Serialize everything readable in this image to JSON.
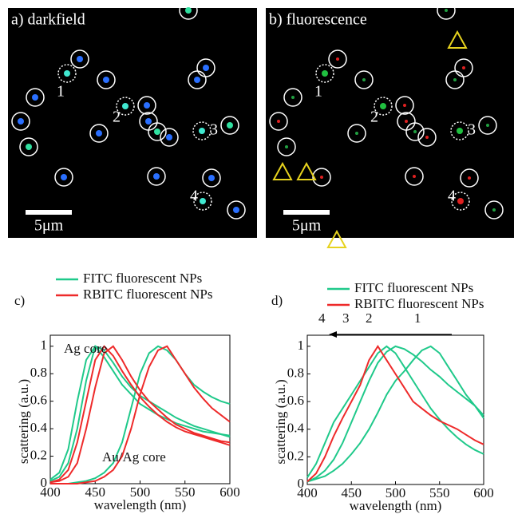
{
  "images": [
    {
      "label": "a) darkfield",
      "numbers": [
        "1",
        "2",
        "3",
        "4"
      ],
      "scale": "5μm"
    },
    {
      "label": "b) fluorescence",
      "numbers": [
        "1",
        "2",
        "3",
        "4"
      ],
      "scale": "5μm"
    }
  ],
  "chart_data": [
    {
      "type": "line",
      "panel": "c)",
      "x_label": "wavelength (nm)",
      "y_label": "scattering (a.u.)",
      "x": [
        400,
        410,
        420,
        430,
        440,
        450,
        460,
        470,
        480,
        490,
        500,
        510,
        520,
        530,
        540,
        550,
        560,
        570,
        580,
        590,
        600
      ],
      "xlim": [
        400,
        600
      ],
      "xticks": [
        400,
        450,
        500,
        550,
        600
      ],
      "ylim": [
        0,
        1.08
      ],
      "yticks": [
        0,
        0.2,
        0.4,
        0.6,
        0.8,
        1
      ],
      "annotations": [
        "Ag core",
        "Au/Ag core"
      ],
      "series": [
        {
          "name": "FITC fluorescent NPs",
          "color": "#1fc98a",
          "curves": [
            {
              "values": [
                0.02,
                0.05,
                0.15,
                0.4,
                0.75,
                1.0,
                0.97,
                0.88,
                0.78,
                0.7,
                0.64,
                0.6,
                0.56,
                0.52,
                0.48,
                0.45,
                0.42,
                0.4,
                0.38,
                0.36,
                0.34
              ]
            },
            {
              "values": [
                0.03,
                0.08,
                0.25,
                0.6,
                0.9,
                1.0,
                0.92,
                0.82,
                0.72,
                0.65,
                0.58,
                0.54,
                0.5,
                0.47,
                0.44,
                0.42,
                0.4,
                0.38,
                0.37,
                0.36,
                0.35
              ]
            },
            {
              "values": [
                0,
                0,
                0,
                0.01,
                0.02,
                0.04,
                0.08,
                0.15,
                0.3,
                0.55,
                0.8,
                0.95,
                1.0,
                0.97,
                0.9,
                0.8,
                0.72,
                0.67,
                0.63,
                0.6,
                0.58
              ]
            }
          ]
        },
        {
          "name": "RBITC fluorescent NPs",
          "color": "#ee2a2a",
          "curves": [
            {
              "values": [
                0.01,
                0.02,
                0.05,
                0.15,
                0.4,
                0.7,
                0.95,
                1.0,
                0.9,
                0.78,
                0.68,
                0.6,
                0.54,
                0.48,
                0.43,
                0.4,
                0.37,
                0.35,
                0.33,
                0.31,
                0.3
              ]
            },
            {
              "values": [
                0.01,
                0.03,
                0.1,
                0.3,
                0.6,
                0.9,
                1.0,
                0.93,
                0.82,
                0.72,
                0.63,
                0.56,
                0.5,
                0.45,
                0.41,
                0.38,
                0.36,
                0.34,
                0.32,
                0.3,
                0.28
              ]
            },
            {
              "values": [
                0,
                0,
                0,
                0,
                0.01,
                0.02,
                0.05,
                0.1,
                0.2,
                0.4,
                0.65,
                0.85,
                0.97,
                1.0,
                0.9,
                0.8,
                0.7,
                0.62,
                0.55,
                0.5,
                0.45
              ]
            }
          ]
        }
      ]
    },
    {
      "type": "line",
      "panel": "d)",
      "x_label": "wavelength (nm)",
      "y_label": "scattering (a.u.)",
      "x": [
        400,
        410,
        420,
        430,
        440,
        450,
        460,
        470,
        480,
        490,
        500,
        510,
        520,
        530,
        540,
        550,
        560,
        570,
        580,
        590,
        600
      ],
      "xlim": [
        400,
        600
      ],
      "xticks": [
        400,
        450,
        500,
        550,
        600
      ],
      "ylim": [
        0,
        1.08
      ],
      "yticks": [
        0,
        0.2,
        0.4,
        0.6,
        0.8,
        1
      ],
      "annotations": [
        "4",
        "3",
        "2",
        "1"
      ],
      "series": [
        {
          "name": "FITC fluorescent NPs",
          "color": "#1fc98a",
          "curves": [
            {
              "values": [
                0.02,
                0.04,
                0.06,
                0.1,
                0.15,
                0.22,
                0.3,
                0.4,
                0.52,
                0.65,
                0.75,
                0.82,
                0.9,
                0.97,
                1.0,
                0.95,
                0.85,
                0.75,
                0.65,
                0.57,
                0.48
              ]
            },
            {
              "values": [
                0.02,
                0.05,
                0.1,
                0.18,
                0.3,
                0.45,
                0.6,
                0.75,
                0.88,
                0.96,
                1.0,
                0.98,
                0.94,
                0.89,
                0.83,
                0.78,
                0.72,
                0.67,
                0.62,
                0.57,
                0.5
              ]
            },
            {
              "values": [
                0.05,
                0.15,
                0.3,
                0.45,
                0.55,
                0.65,
                0.75,
                0.85,
                0.95,
                1.0,
                0.95,
                0.85,
                0.75,
                0.65,
                0.55,
                0.47,
                0.4,
                0.34,
                0.29,
                0.25,
                0.22
              ]
            }
          ]
        },
        {
          "name": "RBITC fluorescent NPs",
          "color": "#ee2a2a",
          "curves": [
            {
              "values": [
                0.02,
                0.08,
                0.2,
                0.35,
                0.48,
                0.6,
                0.72,
                0.9,
                1.0,
                0.9,
                0.8,
                0.7,
                0.6,
                0.55,
                0.5,
                0.46,
                0.43,
                0.4,
                0.36,
                0.32,
                0.29
              ]
            }
          ]
        }
      ]
    }
  ]
}
